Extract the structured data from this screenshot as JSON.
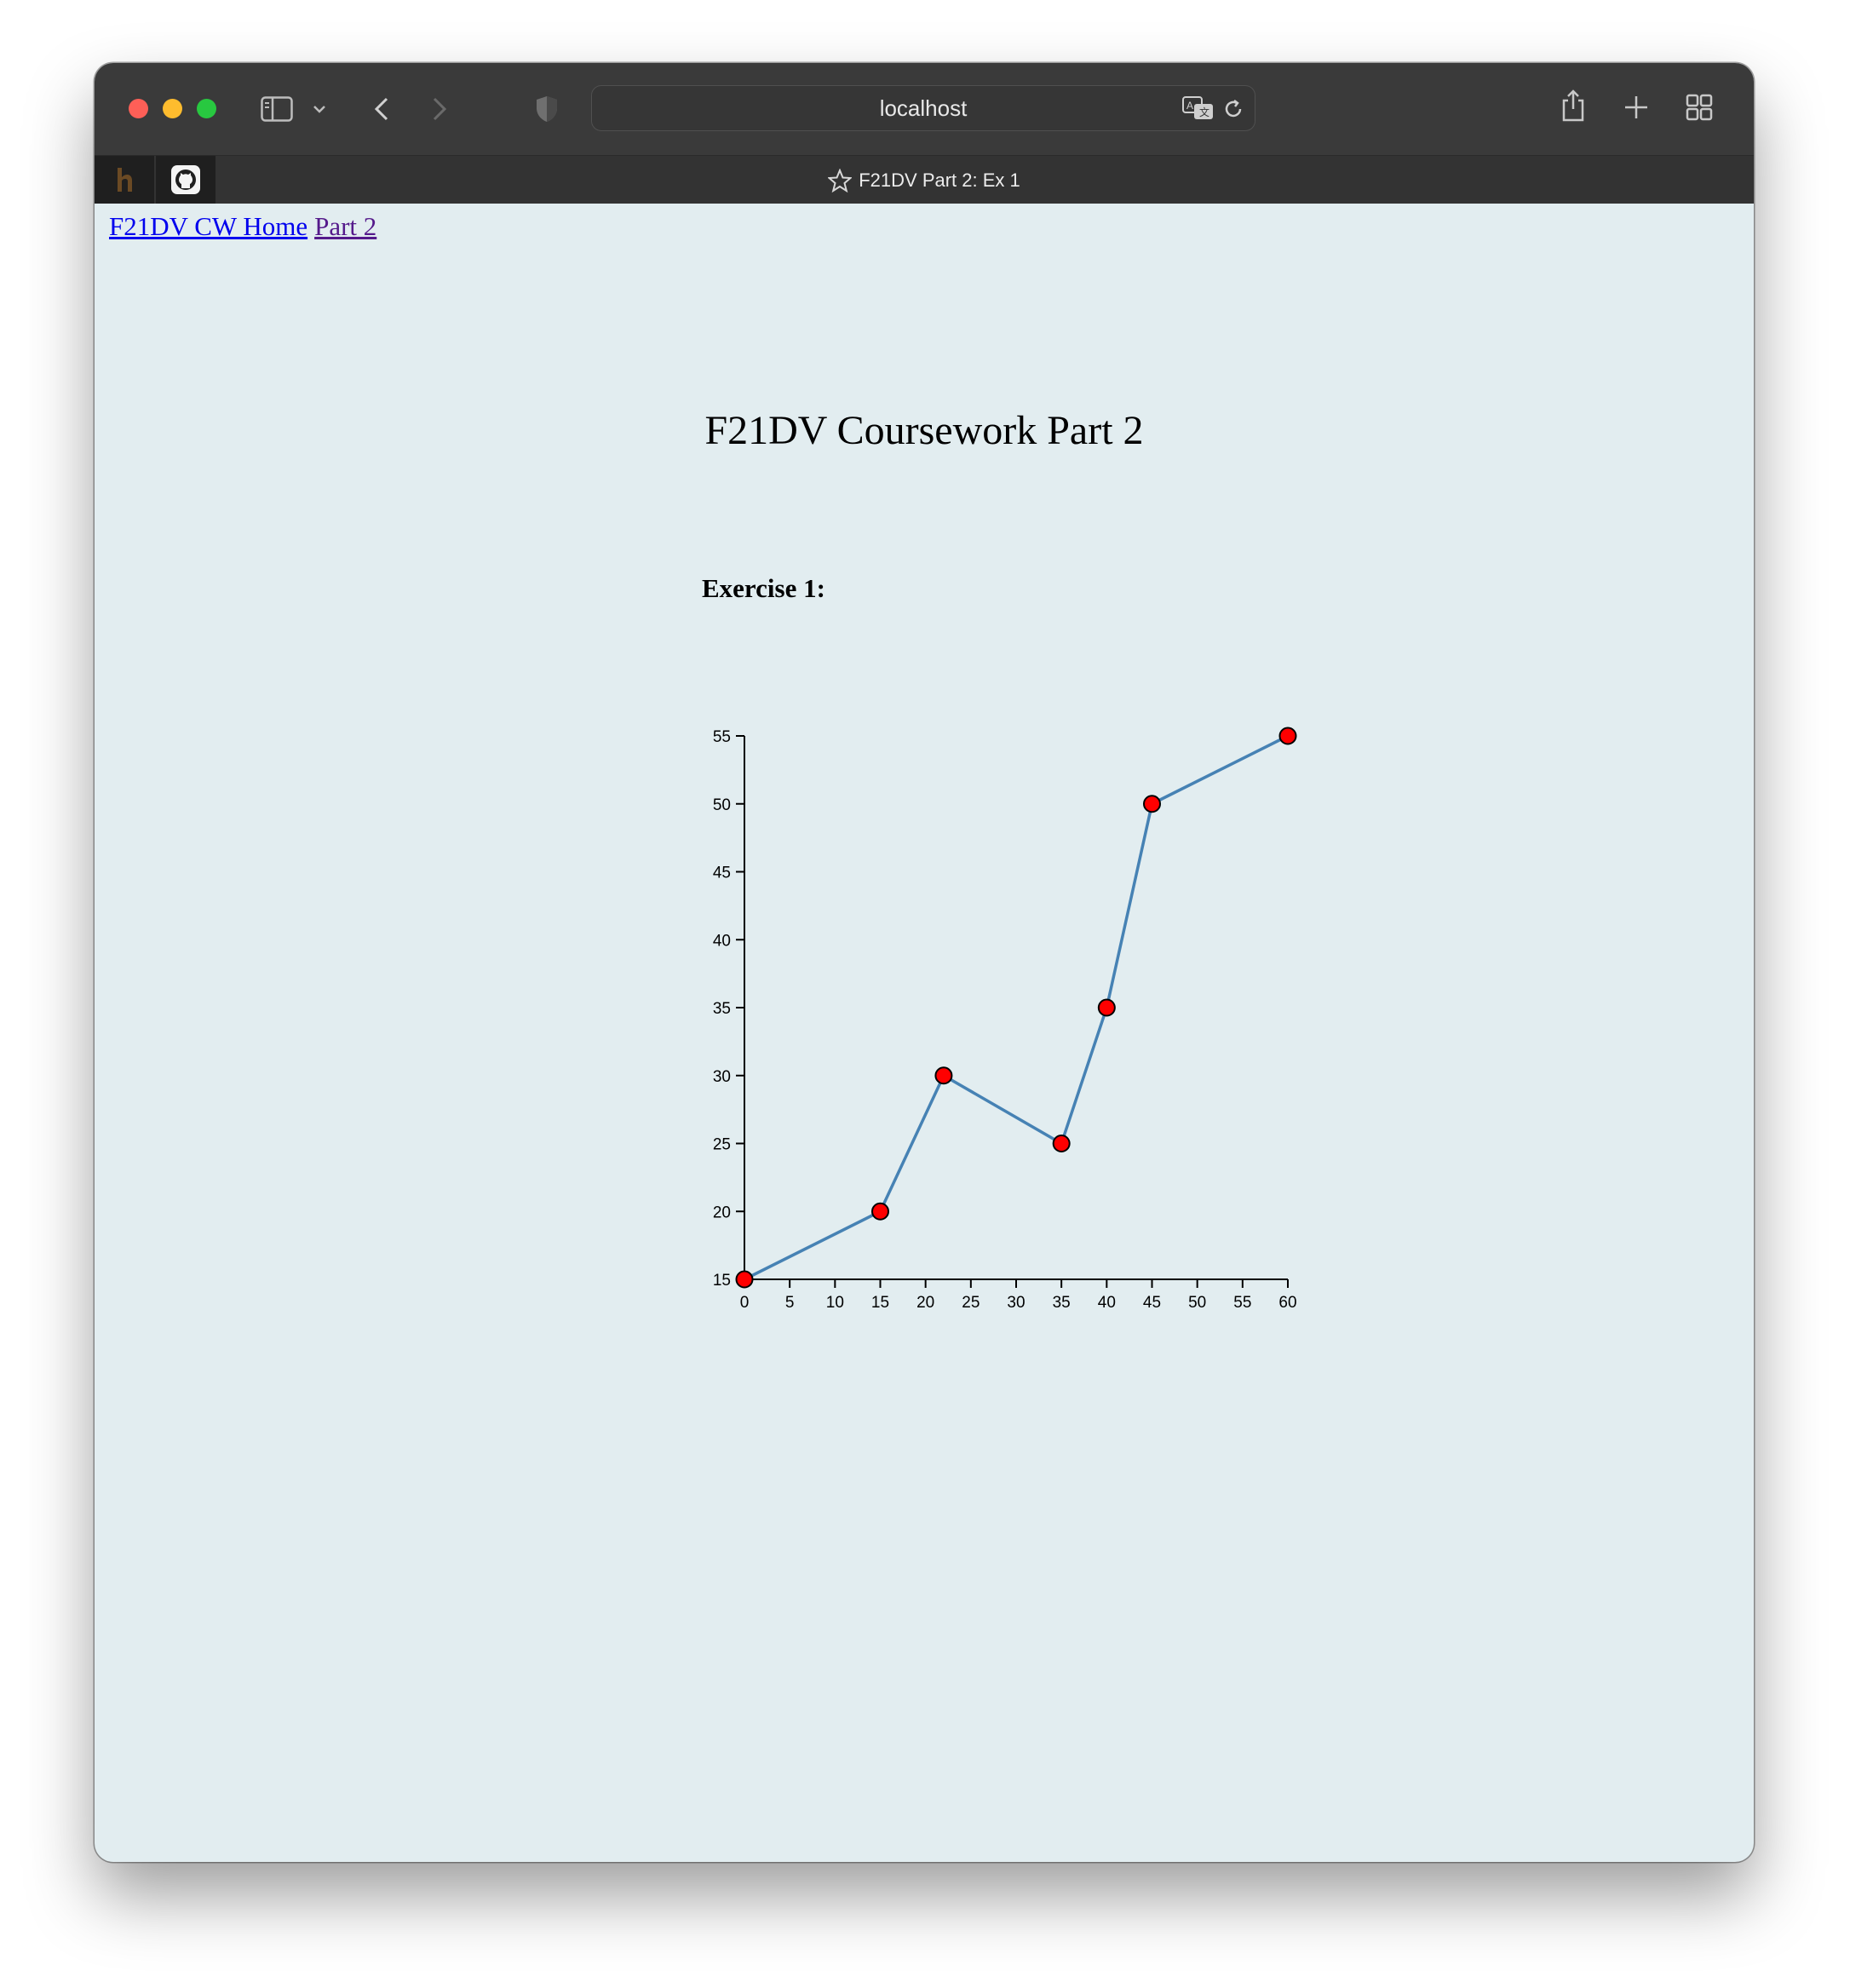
{
  "browser": {
    "address": "localhost",
    "tab_title": "F21DV Part 2: Ex 1"
  },
  "nav": {
    "home_link": "F21DV CW Home",
    "part_link": "Part 2"
  },
  "page": {
    "title": "F21DV Coursework Part 2",
    "exercise_title": "Exercise 1:"
  },
  "colors": {
    "line": "#4682b4",
    "point": "#ff0000",
    "background": "#e2edf0"
  },
  "chart_data": {
    "type": "line",
    "title": "",
    "xlabel": "",
    "ylabel": "",
    "x": [
      0,
      15,
      22,
      35,
      40,
      45,
      60
    ],
    "y": [
      15,
      20,
      30,
      25,
      35,
      50,
      55
    ],
    "xlim": [
      0,
      60
    ],
    "ylim": [
      15,
      55
    ],
    "xticks": [
      0,
      5,
      10,
      15,
      20,
      25,
      30,
      35,
      40,
      45,
      50,
      55,
      60
    ],
    "yticks": [
      15,
      20,
      25,
      30,
      35,
      40,
      45,
      50,
      55
    ],
    "grid": false,
    "markers": true
  }
}
